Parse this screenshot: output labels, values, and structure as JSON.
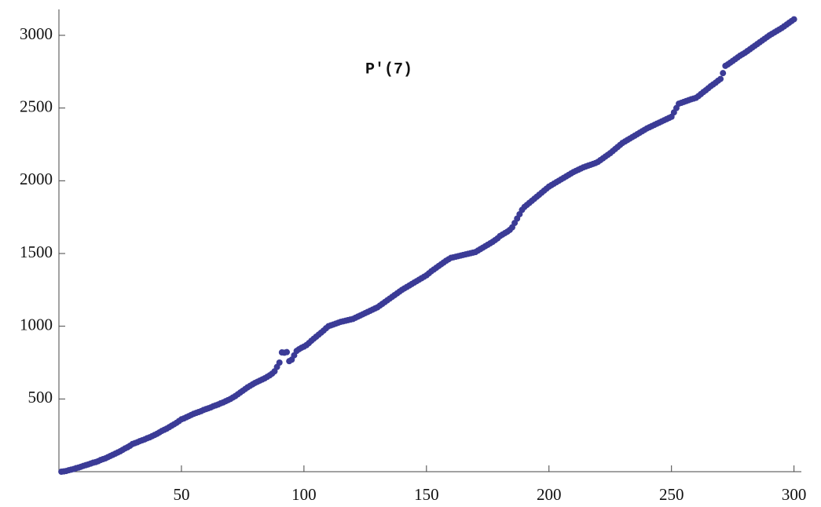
{
  "chart_data": {
    "type": "scatter",
    "title": "P'(7)",
    "color": "#3b3b96",
    "xlim": [
      0,
      303
    ],
    "ylim": [
      0,
      3178
    ],
    "xticks": [
      50,
      100,
      150,
      200,
      250,
      300
    ],
    "yticks": [
      500,
      1000,
      1500,
      2000,
      2500,
      3000
    ],
    "x": [
      1,
      2,
      3,
      4,
      5,
      6,
      7,
      8,
      9,
      10,
      11,
      12,
      13,
      14,
      15,
      16,
      17,
      18,
      19,
      20,
      21,
      22,
      23,
      24,
      25,
      26,
      27,
      28,
      29,
      30,
      31,
      32,
      33,
      34,
      35,
      36,
      37,
      38,
      39,
      40,
      41,
      42,
      43,
      44,
      45,
      46,
      47,
      48,
      49,
      50,
      51,
      52,
      53,
      54,
      55,
      56,
      57,
      58,
      59,
      60,
      61,
      62,
      63,
      64,
      65,
      66,
      67,
      68,
      69,
      70,
      71,
      72,
      73,
      74,
      75,
      76,
      77,
      78,
      79,
      80,
      81,
      82,
      83,
      84,
      85,
      86,
      87,
      88,
      89,
      90,
      91,
      92,
      93,
      94,
      95,
      96,
      97,
      98,
      99,
      100,
      101,
      102,
      103,
      104,
      105,
      106,
      107,
      108,
      109,
      110,
      111,
      112,
      113,
      114,
      115,
      116,
      117,
      118,
      119,
      120,
      121,
      122,
      123,
      124,
      125,
      126,
      127,
      128,
      129,
      130,
      131,
      132,
      133,
      134,
      135,
      136,
      137,
      138,
      139,
      140,
      141,
      142,
      143,
      144,
      145,
      146,
      147,
      148,
      149,
      150,
      151,
      152,
      153,
      154,
      155,
      156,
      157,
      158,
      159,
      160,
      161,
      162,
      163,
      164,
      165,
      166,
      167,
      168,
      169,
      170,
      171,
      172,
      173,
      174,
      175,
      176,
      177,
      178,
      179,
      180,
      181,
      182,
      183,
      184,
      185,
      186,
      187,
      188,
      189,
      190,
      191,
      192,
      193,
      194,
      195,
      196,
      197,
      198,
      199,
      200,
      201,
      202,
      203,
      204,
      205,
      206,
      207,
      208,
      209,
      210,
      211,
      212,
      213,
      214,
      215,
      216,
      217,
      218,
      219,
      220,
      221,
      222,
      223,
      224,
      225,
      226,
      227,
      228,
      229,
      230,
      231,
      232,
      233,
      234,
      235,
      236,
      237,
      238,
      239,
      240,
      241,
      242,
      243,
      244,
      245,
      246,
      247,
      248,
      249,
      250,
      251,
      252,
      253,
      254,
      255,
      256,
      257,
      258,
      259,
      260,
      261,
      262,
      263,
      264,
      265,
      266,
      267,
      268,
      269,
      270,
      271,
      272,
      273,
      274,
      275,
      276,
      277,
      278,
      279,
      280,
      281,
      282,
      283,
      284,
      285,
      286,
      287,
      288,
      289,
      290,
      291,
      292,
      293,
      294,
      295,
      296,
      297,
      298,
      299,
      300
    ],
    "values": [
      0,
      2,
      5,
      10,
      14,
      18,
      24,
      28,
      34,
      40,
      45,
      50,
      56,
      62,
      66,
      72,
      80,
      86,
      92,
      100,
      108,
      116,
      124,
      132,
      140,
      150,
      160,
      168,
      178,
      190,
      196,
      202,
      210,
      216,
      222,
      230,
      236,
      244,
      252,
      260,
      270,
      280,
      288,
      296,
      306,
      316,
      326,
      336,
      348,
      360,
      366,
      374,
      382,
      390,
      398,
      404,
      410,
      416,
      424,
      430,
      436,
      442,
      450,
      456,
      462,
      470,
      476,
      484,
      492,
      500,
      510,
      520,
      532,
      544,
      556,
      568,
      580,
      590,
      600,
      610,
      618,
      626,
      634,
      642,
      652,
      662,
      674,
      690,
      720,
      750,
      820,
      818,
      822,
      760,
      770,
      800,
      830,
      842,
      852,
      860,
      870,
      884,
      900,
      914,
      928,
      942,
      956,
      970,
      986,
      1000,
      1006,
      1012,
      1018,
      1024,
      1030,
      1034,
      1038,
      1042,
      1046,
      1050,
      1058,
      1066,
      1074,
      1082,
      1090,
      1098,
      1106,
      1114,
      1122,
      1130,
      1142,
      1154,
      1166,
      1178,
      1190,
      1202,
      1214,
      1226,
      1238,
      1250,
      1260,
      1270,
      1280,
      1290,
      1300,
      1310,
      1320,
      1330,
      1340,
      1350,
      1364,
      1378,
      1390,
      1402,
      1414,
      1426,
      1438,
      1450,
      1460,
      1470,
      1474,
      1478,
      1482,
      1486,
      1490,
      1494,
      1498,
      1502,
      1506,
      1510,
      1520,
      1530,
      1540,
      1550,
      1560,
      1570,
      1580,
      1592,
      1604,
      1620,
      1630,
      1640,
      1650,
      1662,
      1680,
      1710,
      1740,
      1770,
      1800,
      1820,
      1834,
      1848,
      1862,
      1876,
      1890,
      1904,
      1918,
      1932,
      1946,
      1960,
      1970,
      1980,
      1990,
      2000,
      2010,
      2020,
      2030,
      2040,
      2050,
      2060,
      2068,
      2076,
      2084,
      2092,
      2098,
      2104,
      2110,
      2116,
      2122,
      2130,
      2142,
      2154,
      2166,
      2178,
      2190,
      2204,
      2218,
      2232,
      2246,
      2260,
      2270,
      2280,
      2290,
      2300,
      2310,
      2320,
      2330,
      2340,
      2350,
      2360,
      2368,
      2376,
      2384,
      2392,
      2400,
      2408,
      2416,
      2424,
      2432,
      2440,
      2470,
      2500,
      2530,
      2536,
      2542,
      2548,
      2554,
      2560,
      2565,
      2570,
      2582,
      2596,
      2610,
      2622,
      2636,
      2650,
      2662,
      2674,
      2688,
      2700,
      2740,
      2790,
      2800,
      2812,
      2824,
      2836,
      2848,
      2860,
      2870,
      2880,
      2892,
      2904,
      2916,
      2928,
      2940,
      2952,
      2964,
      2976,
      2988,
      3000,
      3010,
      3020,
      3030,
      3040,
      3050,
      3062,
      3074,
      3086,
      3098,
      3110
    ]
  }
}
